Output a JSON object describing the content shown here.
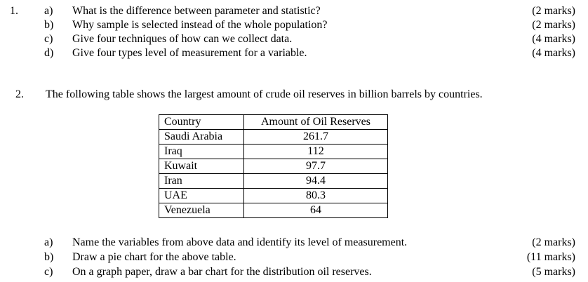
{
  "page": {
    "background": "#ffffff",
    "text_color": "#000000"
  },
  "questions": [
    {
      "number": "1.",
      "parts": [
        {
          "letter": "a)",
          "text": "What is the difference between parameter and statistic?",
          "marks": "(2 marks)"
        },
        {
          "letter": "b)",
          "text": "Why sample is selected instead of the whole population?",
          "marks": "(2 marks)"
        },
        {
          "letter": "c)",
          "text": "Give four techniques of how can we collect data.",
          "marks": "(4 marks)"
        },
        {
          "letter": "d)",
          "text": "Give four types level of measurement for a variable.",
          "marks": "(4 marks)"
        }
      ]
    },
    {
      "number": "2.",
      "intro": "The following table shows the largest amount of crude oil reserves in billion barrels by countries.",
      "parts": [
        {
          "letter": "a)",
          "text": "Name the variables from above data and identify its level of measurement.",
          "marks": "(2 marks)"
        },
        {
          "letter": "b)",
          "text": "Draw a pie chart for the above table.",
          "marks": "(11 marks)"
        },
        {
          "letter": "c)",
          "text": "On a graph paper, draw a bar chart for the distribution oil reserves.",
          "marks": "(5 marks)"
        }
      ]
    }
  ],
  "table": {
    "headers": [
      "Country",
      "Amount of Oil Reserves"
    ],
    "rows": [
      [
        "Saudi Arabia",
        "261.7"
      ],
      [
        "Iraq",
        "112"
      ],
      [
        "Kuwait",
        "97.7"
      ],
      [
        "Iran",
        "94.4"
      ],
      [
        "UAE",
        "80.3"
      ],
      [
        "Venezuela",
        "64"
      ]
    ]
  }
}
